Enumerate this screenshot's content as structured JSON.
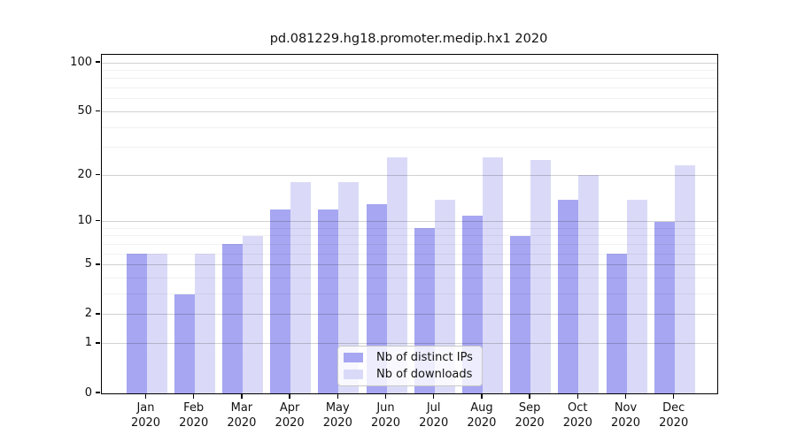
{
  "chart_data": {
    "type": "bar",
    "title": "pd.081229.hg18.promoter.medip.hx1 2020",
    "categories": [
      "Jan",
      "Feb",
      "Mar",
      "Apr",
      "May",
      "Jun",
      "Jul",
      "Aug",
      "Sep",
      "Oct",
      "Nov",
      "Dec"
    ],
    "x_year_label": "2020",
    "series": [
      {
        "name": "Nb of distinct IPs",
        "color": "#a6a6f2",
        "values": [
          6,
          3,
          7,
          12,
          12,
          13,
          9,
          11,
          8,
          14,
          6,
          10
        ]
      },
      {
        "name": "Nb of downloads",
        "color": "#dadaf8",
        "values": [
          6,
          6,
          8,
          18,
          18,
          26,
          14,
          26,
          25,
          20,
          14,
          23
        ]
      }
    ],
    "yscale": "log10(1+x)",
    "yticks": [
      0,
      1,
      2,
      5,
      10,
      20,
      50,
      100
    ],
    "y_minor_ticks": [
      3,
      4,
      6,
      7,
      8,
      9,
      30,
      40,
      60,
      70,
      80,
      90
    ],
    "ylim": [
      0,
      112
    ],
    "grid": true,
    "legend_position": "lower center"
  },
  "axis": {
    "line_color": "#000000",
    "major_grid_color": "rgba(0,0,0,0.18)",
    "minor_grid_color": "rgba(0,0,0,0.055)"
  }
}
